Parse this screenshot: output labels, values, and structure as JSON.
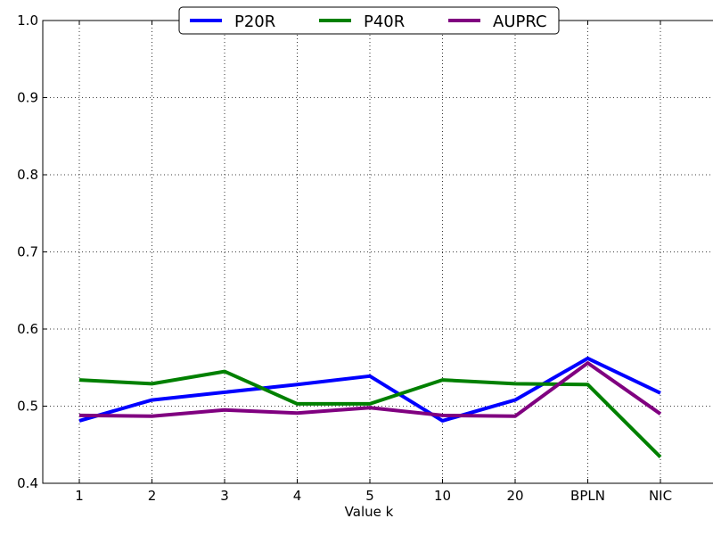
{
  "chart_data": {
    "type": "line",
    "categories": [
      "1",
      "2",
      "3",
      "4",
      "5",
      "10",
      "20",
      "BPLN",
      "NIC"
    ],
    "xlabel": "Value k",
    "ylabel": "",
    "title": "",
    "ylim": [
      0.4,
      1.0
    ],
    "yticks": [
      "0.4",
      "0.5",
      "0.6",
      "0.7",
      "0.8",
      "0.9",
      "1.0"
    ],
    "grid": true,
    "legend_position": "top-center",
    "series": [
      {
        "name": "P20R",
        "color": "#0000ff",
        "values": [
          0.481,
          0.508,
          0.518,
          0.528,
          0.539,
          0.481,
          0.508,
          0.562,
          0.517
        ]
      },
      {
        "name": "P40R",
        "color": "#008000",
        "values": [
          0.534,
          0.529,
          0.545,
          0.503,
          0.503,
          0.534,
          0.529,
          0.528,
          0.434
        ]
      },
      {
        "name": "AUPRC",
        "color": "#800080",
        "values": [
          0.488,
          0.487,
          0.495,
          0.491,
          0.498,
          0.488,
          0.487,
          0.556,
          0.49
        ]
      }
    ]
  }
}
